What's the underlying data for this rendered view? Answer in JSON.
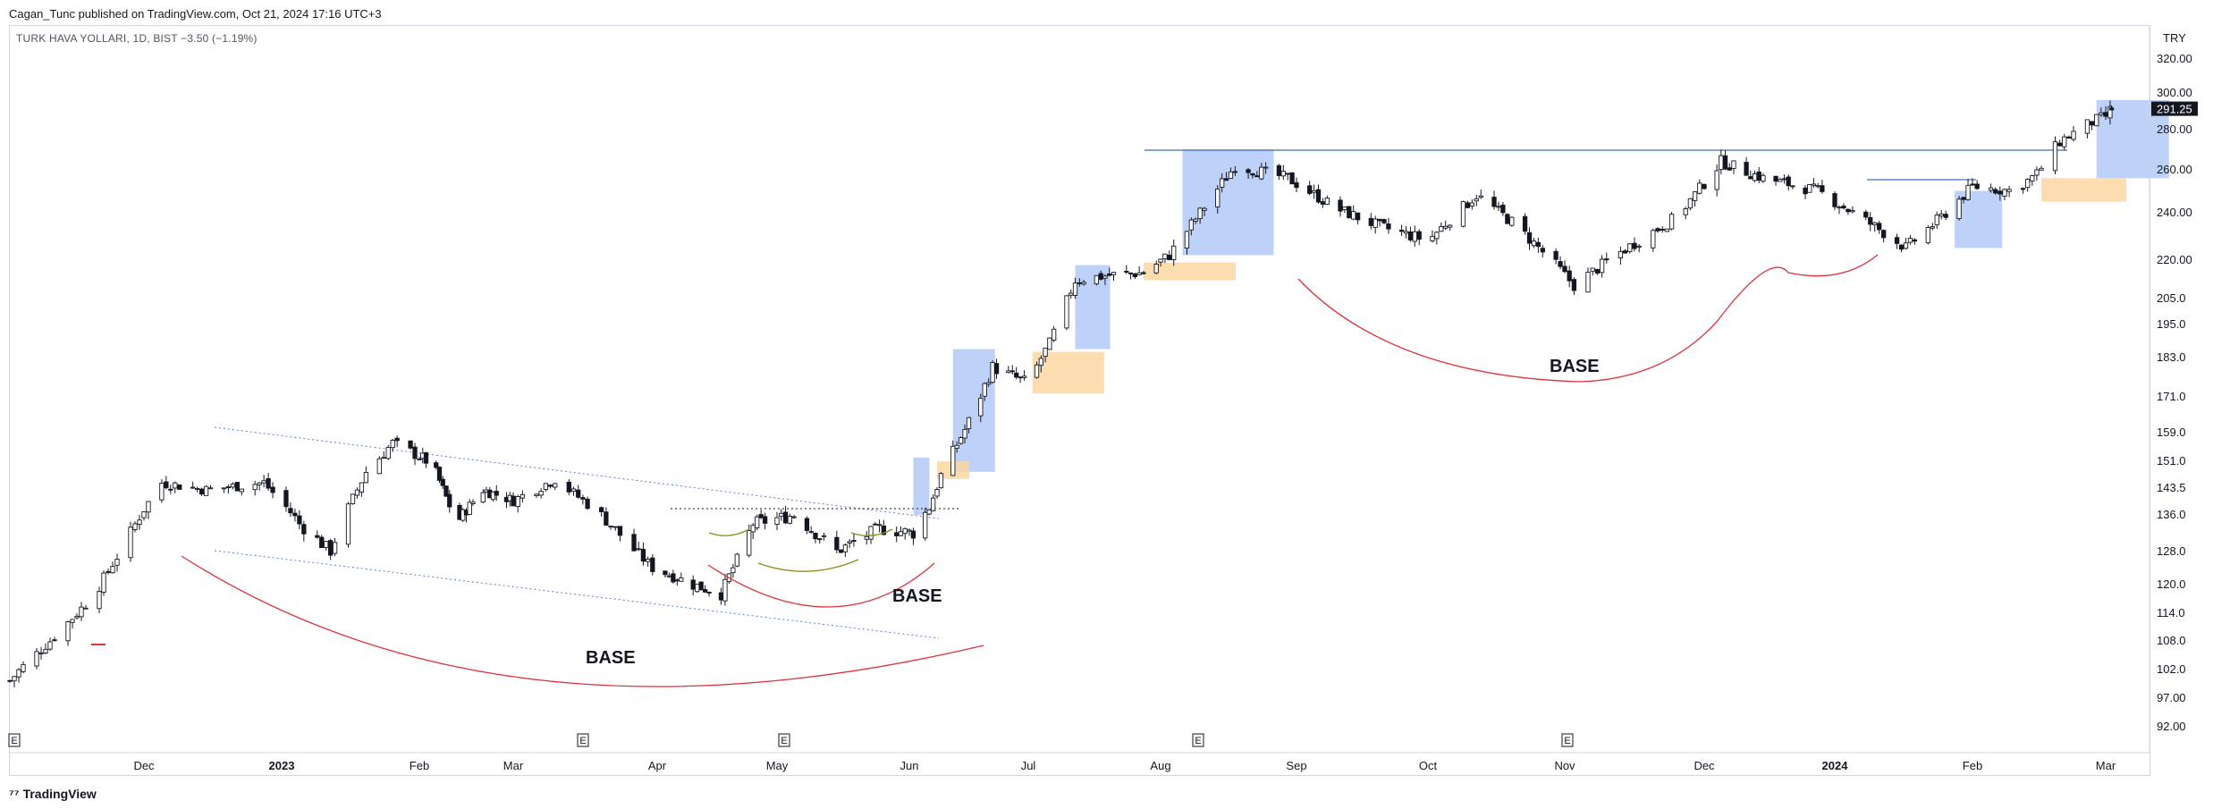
{
  "header": {
    "published": "Cagan_Tunc published on TradingView.com, Oct 21, 2024 17:16 UTC+3",
    "symbol": "TURK HAVA YOLLARI, 1D, BIST  −3.50 (−1.19%)"
  },
  "footer": {
    "logo_text": "TradingView",
    "logo_mark": "⁷⁷"
  },
  "colors": {
    "up_candle": "#ffffff",
    "down_candle": "#131722",
    "base_curve": "#e0303a",
    "blue_zone": "#a8c3f7",
    "orange_zone": "#fad7a1",
    "trendline": "#5b7fd9",
    "resistance": "#3d6fb6",
    "last_price_bg": "#131722"
  },
  "chart_data": {
    "type": "candlestick",
    "currency": "TRY",
    "y_ticks": [
      "320.00",
      "300.00",
      "280.00",
      "260.00",
      "240.00",
      "220.00",
      "205.0",
      "195.0",
      "183.0",
      "171.0",
      "159.0",
      "151.0",
      "143.5",
      "136.0",
      "128.0",
      "120.0",
      "114.0",
      "108.0",
      "102.0",
      "97.00",
      "92.00"
    ],
    "last_price": "291.25",
    "x_ticks": [
      {
        "label": "Dec",
        "bold": false
      },
      {
        "label": "2023",
        "bold": true
      },
      {
        "label": "Feb",
        "bold": false
      },
      {
        "label": "Mar",
        "bold": false
      },
      {
        "label": "Apr",
        "bold": false
      },
      {
        "label": "May",
        "bold": false
      },
      {
        "label": "Jun",
        "bold": false
      },
      {
        "label": "Jul",
        "bold": false
      },
      {
        "label": "Aug",
        "bold": false
      },
      {
        "label": "Sep",
        "bold": false
      },
      {
        "label": "Oct",
        "bold": false
      },
      {
        "label": "Nov",
        "bold": false
      },
      {
        "label": "Dec",
        "bold": false
      },
      {
        "label": "2024",
        "bold": true
      },
      {
        "label": "Feb",
        "bold": false
      },
      {
        "label": "Mar",
        "bold": false
      }
    ],
    "earnings_marker": "E",
    "annotations": [
      {
        "label": "BASE"
      },
      {
        "label": "BASE"
      },
      {
        "label": "BASE"
      }
    ],
    "close_path": [
      [
        "2022-11-01",
        100
      ],
      [
        "2022-11-10",
        108
      ],
      [
        "2022-11-20",
        118
      ],
      [
        "2022-11-28",
        132
      ],
      [
        "2022-12-05",
        145
      ],
      [
        "2022-12-15",
        143
      ],
      [
        "2022-12-28",
        145
      ],
      [
        "2023-01-05",
        134
      ],
      [
        "2023-01-12",
        128
      ],
      [
        "2023-01-20",
        148
      ],
      [
        "2023-01-26",
        156
      ],
      [
        "2023-02-05",
        150
      ],
      [
        "2023-02-12",
        134
      ],
      [
        "2023-02-20",
        143
      ],
      [
        "2023-03-01",
        140
      ],
      [
        "2023-03-10",
        146
      ],
      [
        "2023-03-20",
        136
      ],
      [
        "2023-03-31",
        124
      ],
      [
        "2023-04-10",
        120
      ],
      [
        "2023-04-17",
        118
      ],
      [
        "2023-04-25",
        134
      ],
      [
        "2023-05-05",
        136
      ],
      [
        "2023-05-15",
        128
      ],
      [
        "2023-05-25",
        133
      ],
      [
        "2023-06-02",
        132
      ],
      [
        "2023-06-06",
        138
      ],
      [
        "2023-06-09",
        147
      ],
      [
        "2023-06-15",
        160
      ],
      [
        "2023-06-22",
        180
      ],
      [
        "2023-07-01",
        175
      ],
      [
        "2023-07-06",
        188
      ],
      [
        "2023-07-12",
        212
      ],
      [
        "2023-07-20",
        214
      ],
      [
        "2023-07-28",
        215
      ],
      [
        "2023-08-03",
        222
      ],
      [
        "2023-08-10",
        240
      ],
      [
        "2023-08-18",
        262
      ],
      [
        "2023-08-30",
        256
      ],
      [
        "2023-09-10",
        242
      ],
      [
        "2023-09-20",
        234
      ],
      [
        "2023-10-01",
        228
      ],
      [
        "2023-10-12",
        248
      ],
      [
        "2023-10-20",
        236
      ],
      [
        "2023-10-30",
        218
      ],
      [
        "2023-11-03",
        210
      ],
      [
        "2023-11-12",
        222
      ],
      [
        "2023-11-25",
        238
      ],
      [
        "2023-12-05",
        264
      ],
      [
        "2023-12-15",
        256
      ],
      [
        "2023-12-28",
        250
      ],
      [
        "2024-01-10",
        234
      ],
      [
        "2024-01-17",
        225
      ],
      [
        "2024-01-25",
        238
      ],
      [
        "2024-02-01",
        252
      ],
      [
        "2024-02-10",
        250
      ],
      [
        "2024-02-15",
        258
      ],
      [
        "2024-02-20",
        274
      ],
      [
        "2024-02-27",
        284
      ],
      [
        "2024-03-05",
        291.25
      ]
    ]
  }
}
